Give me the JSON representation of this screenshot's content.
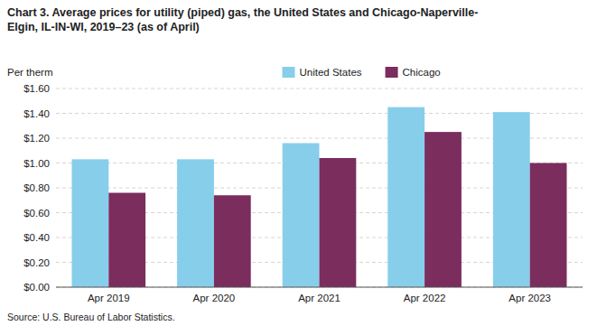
{
  "chart_data": {
    "type": "bar",
    "title": "Chart 3. Average prices for utility (piped) gas, the United States and Chicago-Naperville-\nElgin, IL-IN-WI, 2019–23 (as of April)",
    "y_label": "Per therm",
    "annotations": [
      "Source: U.S. Bureau of Labor Statistics."
    ],
    "categories": [
      "Apr 2019",
      "Apr 2020",
      "Apr 2021",
      "Apr 2022",
      "Apr 2023"
    ],
    "series": [
      {
        "name": "United States",
        "color": "#87CEEB",
        "values": [
          1.03,
          1.03,
          1.16,
          1.45,
          1.41
        ]
      },
      {
        "name": "Chicago",
        "color": "#7B2D5E",
        "values": [
          0.76,
          0.74,
          1.04,
          1.25,
          1.0
        ]
      }
    ],
    "ylim": [
      0,
      1.6
    ],
    "yticks": [
      {
        "value": 0.0,
        "label": "$0.00"
      },
      {
        "value": 0.2,
        "label": "$0.20"
      },
      {
        "value": 0.4,
        "label": "$0.40"
      },
      {
        "value": 0.6,
        "label": "$0.60"
      },
      {
        "value": 0.8,
        "label": "$0.80"
      },
      {
        "value": 1.0,
        "label": "$1.00"
      },
      {
        "value": 1.2,
        "label": "$1.20"
      },
      {
        "value": 1.4,
        "label": "$1.40"
      },
      {
        "value": 1.6,
        "label": "$1.60"
      }
    ],
    "grid": true,
    "legend": "top"
  }
}
